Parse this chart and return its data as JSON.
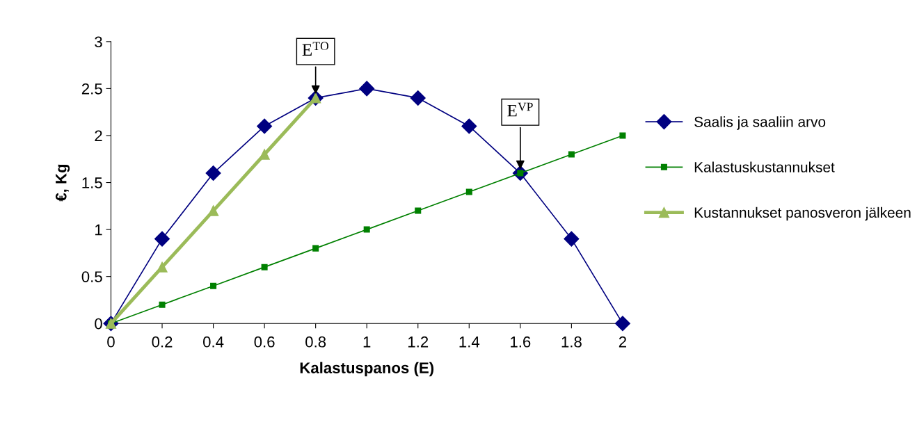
{
  "chart_data": {
    "type": "line",
    "xlabel": "Kalastuspanos (E)",
    "ylabel": "€, Kg",
    "series": [
      {
        "name": "Saalis ja saaliin arvo",
        "color": "#000080",
        "marker": "diamond",
        "x": [
          0,
          0.2,
          0.4,
          0.6,
          0.8,
          1,
          1.2,
          1.4,
          1.6,
          1.8,
          2
        ],
        "values": [
          0,
          0.9,
          1.6,
          2.1,
          2.4,
          2.5,
          2.4,
          2.1,
          1.6,
          0.9,
          0
        ]
      },
      {
        "name": "Kalastuskustannukset",
        "color": "#008000",
        "marker": "square",
        "x": [
          0,
          0.2,
          0.4,
          0.6,
          0.8,
          1,
          1.2,
          1.4,
          1.6,
          1.8,
          2
        ],
        "values": [
          0,
          0.2,
          0.4,
          0.6,
          0.8,
          1,
          1.2,
          1.4,
          1.6,
          1.8,
          2
        ]
      },
      {
        "name": "Kustannukset panosveron jälkeen",
        "color": "#9bbb59",
        "marker": "triangle",
        "x": [
          0,
          0.2,
          0.4,
          0.6,
          0.8
        ],
        "values": [
          0,
          0.6,
          1.2,
          1.8,
          2.4
        ]
      }
    ],
    "annotations": [
      {
        "text": "E$^{TO}$",
        "x": 0.8,
        "y": 2.4
      },
      {
        "text": "E$^{VP}$",
        "x": 1.6,
        "y": 1.6
      }
    ],
    "xlim": [
      0,
      2
    ],
    "xticks": [
      0,
      0.2,
      0.4,
      0.6,
      0.8,
      1,
      1.2,
      1.4,
      1.6,
      1.8,
      2
    ],
    "ylim": [
      0,
      3
    ],
    "yticks": [
      0,
      0.5,
      1,
      1.5,
      2,
      2.5,
      3
    ],
    "legend": "right",
    "grid": false
  }
}
